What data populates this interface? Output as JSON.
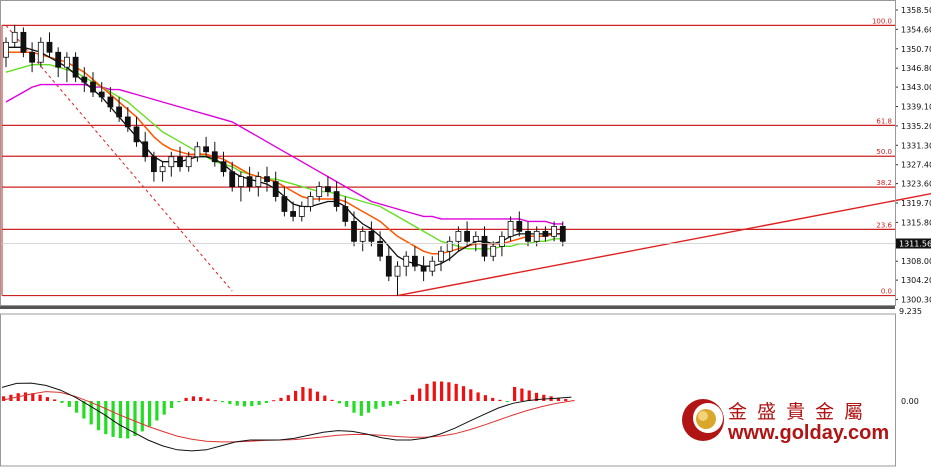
{
  "colors": {
    "background": "#ffffff",
    "candle": "#111111",
    "fib_line": "#cc2222",
    "trendline": "#e02020",
    "ma_fast": "#111111",
    "ma_mid": "#ff5500",
    "ma_green": "#66dd22",
    "ma_magenta": "#dd00dd",
    "macd_pos": "#ee1111",
    "macd_neg": "#22dd22",
    "macd_line": "#111111",
    "signal_line": "#dd3333",
    "logo_red": "#b01414"
  },
  "chart_data": [
    {
      "type": "candlestick",
      "title": "",
      "ylim": [
        1299.2,
        1359.7
      ],
      "y_ticks": [
        "1358.50",
        "1354.60",
        "1350.70",
        "1346.80",
        "1343.00",
        "1339.10",
        "1335.20",
        "1331.30",
        "1327.40",
        "1323.60",
        "1319.70",
        "1315.80",
        "1308.00",
        "1304.20",
        "1300.30"
      ],
      "current_price": "1311.56",
      "fib_levels": [
        {
          "label": "100.0",
          "value": 1355.4
        },
        {
          "label": "61.8",
          "value": 1335.3
        },
        {
          "label": "50.0",
          "value": 1329.1
        },
        {
          "label": "38.2",
          "value": 1322.9
        },
        {
          "label": "23.6",
          "value": 1314.4
        },
        {
          "label": "0.0",
          "value": 1301.1
        }
      ],
      "candles": [
        [
          1349,
          1353,
          1347,
          1352
        ],
        [
          1352,
          1355.5,
          1351,
          1354
        ],
        [
          1354,
          1355,
          1349,
          1350
        ],
        [
          1350,
          1352,
          1346,
          1348
        ],
        [
          1348,
          1353,
          1347,
          1352
        ],
        [
          1352,
          1354,
          1349,
          1350
        ],
        [
          1350,
          1351,
          1345,
          1347
        ],
        [
          1347,
          1350,
          1344,
          1349
        ],
        [
          1349,
          1350,
          1344,
          1345
        ],
        [
          1345,
          1347,
          1342,
          1344
        ],
        [
          1344,
          1346,
          1341,
          1342
        ],
        [
          1342,
          1344,
          1340,
          1341
        ],
        [
          1341,
          1343,
          1338,
          1339
        ],
        [
          1339,
          1341,
          1336,
          1337
        ],
        [
          1337,
          1339,
          1334,
          1335
        ],
        [
          1335,
          1337,
          1331,
          1332
        ],
        [
          1332,
          1334,
          1328,
          1329
        ],
        [
          1329,
          1330,
          1324,
          1326
        ],
        [
          1326,
          1328,
          1324,
          1327
        ],
        [
          1327,
          1330,
          1325,
          1329
        ],
        [
          1329,
          1331,
          1326,
          1327
        ],
        [
          1327,
          1330,
          1326,
          1329
        ],
        [
          1329,
          1332,
          1328,
          1331
        ],
        [
          1331,
          1333,
          1329,
          1330
        ],
        [
          1330,
          1332,
          1327,
          1328
        ],
        [
          1328,
          1330,
          1325,
          1326
        ],
        [
          1326,
          1328,
          1322,
          1323
        ],
        [
          1323,
          1326,
          1320,
          1325
        ],
        [
          1325,
          1327,
          1322,
          1323
        ],
        [
          1323,
          1326,
          1321,
          1325
        ],
        [
          1325,
          1327,
          1322,
          1324
        ],
        [
          1324,
          1326,
          1320,
          1321
        ],
        [
          1321,
          1323,
          1317,
          1318
        ],
        [
          1318,
          1320,
          1316,
          1317
        ],
        [
          1317,
          1320,
          1316,
          1319
        ],
        [
          1319,
          1322,
          1318,
          1321
        ],
        [
          1321,
          1324,
          1320,
          1323
        ],
        [
          1323,
          1325,
          1321,
          1322
        ],
        [
          1322,
          1324,
          1318,
          1319
        ],
        [
          1319,
          1321,
          1315,
          1316
        ],
        [
          1316,
          1318,
          1311,
          1312
        ],
        [
          1312,
          1315,
          1310,
          1314
        ],
        [
          1314,
          1316,
          1311,
          1312
        ],
        [
          1312,
          1314,
          1308,
          1309
        ],
        [
          1309,
          1311,
          1304,
          1305
        ],
        [
          1305,
          1308,
          1301,
          1307
        ],
        [
          1307,
          1310,
          1305,
          1309
        ],
        [
          1309,
          1311,
          1306,
          1307
        ],
        [
          1307,
          1309,
          1304,
          1306
        ],
        [
          1306,
          1309,
          1305,
          1308
        ],
        [
          1308,
          1311,
          1306,
          1310
        ],
        [
          1310,
          1313,
          1308,
          1312
        ],
        [
          1312,
          1315,
          1310,
          1314
        ],
        [
          1314,
          1316,
          1311,
          1312
        ],
        [
          1312,
          1314,
          1310,
          1313
        ],
        [
          1313,
          1315,
          1308,
          1309
        ],
        [
          1309,
          1312,
          1308,
          1311
        ],
        [
          1311,
          1314,
          1309,
          1313
        ],
        [
          1313,
          1317,
          1312,
          1316
        ],
        [
          1316,
          1318,
          1313,
          1314
        ],
        [
          1314,
          1316,
          1311,
          1312
        ],
        [
          1312,
          1315,
          1311,
          1314
        ],
        [
          1314,
          1315,
          1312,
          1313
        ],
        [
          1313,
          1316,
          1312,
          1315
        ],
        [
          1315,
          1316,
          1311,
          1312
        ]
      ],
      "ma_fast": [
        1351,
        1351,
        1351,
        1350.5,
        1350,
        1349,
        1348,
        1347,
        1345.5,
        1344,
        1342.5,
        1341,
        1339,
        1337,
        1335,
        1333,
        1331,
        1329,
        1328,
        1328,
        1328,
        1328.5,
        1329,
        1329,
        1328.5,
        1327.5,
        1326,
        1325,
        1324.5,
        1324,
        1323.5,
        1322.5,
        1321,
        1319.5,
        1319,
        1319,
        1319.5,
        1320,
        1320,
        1319,
        1317,
        1315.5,
        1314.5,
        1313,
        1311,
        1309,
        1308,
        1307.5,
        1307,
        1307,
        1307.5,
        1308.5,
        1310,
        1311,
        1312,
        1312,
        1311.5,
        1312,
        1313,
        1313.5,
        1313.5,
        1313.5,
        1313.5,
        1313.5,
        1313.5
      ],
      "ma_mid": [
        1350,
        1350,
        1350,
        1350,
        1349.5,
        1349,
        1348.5,
        1348,
        1347,
        1346,
        1344.5,
        1343,
        1341.5,
        1340,
        1338.5,
        1337,
        1335,
        1333,
        1331.5,
        1330.5,
        1330,
        1329.5,
        1329.5,
        1329.5,
        1329,
        1328.5,
        1327.5,
        1326.5,
        1325.5,
        1325,
        1324.5,
        1324,
        1323,
        1322,
        1321,
        1320.5,
        1320.5,
        1320.5,
        1320.5,
        1320,
        1319,
        1318,
        1317,
        1316,
        1314.5,
        1313,
        1312,
        1311,
        1310,
        1309.5,
        1309.5,
        1310,
        1310.5,
        1311,
        1311.5,
        1311.5,
        1311.5,
        1311.5,
        1312,
        1312.5,
        1313,
        1313,
        1313,
        1313.5,
        1313.5
      ],
      "ma_green": [
        1346,
        1346.5,
        1347,
        1347.5,
        1347.5,
        1347.5,
        1347,
        1346.5,
        1346,
        1345,
        1344,
        1343,
        1342,
        1341,
        1340,
        1338.5,
        1337,
        1335.5,
        1334,
        1333,
        1332,
        1331,
        1330,
        1329,
        1328,
        1327.5,
        1327,
        1326,
        1325.5,
        1325,
        1324.5,
        1324.5,
        1324,
        1323.5,
        1323,
        1322.5,
        1322,
        1322,
        1321.5,
        1321,
        1320.5,
        1320,
        1319.5,
        1319,
        1318,
        1317,
        1316,
        1315,
        1314,
        1313,
        1312,
        1311.5,
        1311,
        1310.5,
        1310.5,
        1310.5,
        1310.5,
        1311,
        1311,
        1311.5,
        1311.5,
        1312,
        1312,
        1312.5,
        1312.5
      ],
      "ma_magenta": [
        1340,
        1341,
        1342,
        1343,
        1343.5,
        1343.5,
        1343.5,
        1343.5,
        1343.5,
        1343.5,
        1343,
        1343,
        1342.5,
        1342.5,
        1342,
        1341.5,
        1341,
        1340.5,
        1340,
        1339.5,
        1339,
        1338.5,
        1338,
        1337.5,
        1337,
        1336.5,
        1336,
        1335,
        1334,
        1333,
        1332,
        1331,
        1330,
        1329,
        1328,
        1327,
        1326,
        1325,
        1324,
        1323,
        1322,
        1321,
        1320,
        1319.5,
        1319,
        1318.5,
        1318,
        1317.5,
        1317,
        1317,
        1316.5,
        1316.5,
        1316.5,
        1316.5,
        1316.5,
        1316.5,
        1316.5,
        1316.5,
        1316.5,
        1316.5,
        1316,
        1316,
        1316,
        1315.5,
        1315.5
      ],
      "trendline": [
        [
          45,
          1301.1
        ],
        [
          125,
          1327.8
        ]
      ],
      "projection_line": [
        [
          0,
          1355.4
        ],
        [
          26,
          1302
        ]
      ]
    },
    {
      "type": "bar",
      "title": "",
      "y_ticks": [
        "9.235",
        "0.00"
      ],
      "histogram": [
        1.2,
        1.6,
        2.0,
        2.2,
        2.0,
        1.6,
        1.0,
        0.4,
        -0.5,
        -1.5,
        -3,
        -4.5,
        -6,
        -7.5,
        -8.5,
        -9.2,
        -9.5,
        -9.6,
        -9.0,
        -7.8,
        -6.5,
        -5.0,
        -3.5,
        -1.8,
        -0.3,
        0.8,
        1.2,
        1.0,
        0.6,
        0.2,
        -0.3,
        -0.8,
        -1.2,
        -1.4,
        -1.3,
        -1.0,
        -0.5,
        0.2,
        0.8,
        1.5,
        2.6,
        3.6,
        3.2,
        2.4,
        1.4,
        0.3,
        -0.6,
        -1.5,
        -3.0,
        -3.8,
        -3.0,
        -2.0,
        -1.5,
        -1.2,
        -0.8,
        0.3,
        1.6,
        3.2,
        4.4,
        5.0,
        5.0,
        4.8,
        4.4,
        3.8,
        3.0,
        2.2,
        1.5,
        0.8,
        0.3,
        -0.2,
        3.6,
        3.2,
        2.7,
        2.1,
        1.6,
        1.2,
        0.8,
        0.5,
        0.2
      ],
      "macd_line": [
        3.5,
        4.5,
        4.6,
        4.0,
        2.8,
        1.0,
        -1.2,
        -3.5,
        -6,
        -8,
        -10,
        -11.5,
        -12.5,
        -12.8,
        -12.5,
        -11.5,
        -10.5,
        -10,
        -10,
        -10,
        -9.6,
        -8.8,
        -8,
        -7.6,
        -7.8,
        -8.5,
        -9.4,
        -10,
        -10,
        -9.5,
        -8.5,
        -7,
        -5.2,
        -3.5,
        -1.8,
        -0.6,
        0.1,
        0.5,
        0.7,
        1.0
      ],
      "signal_line": [
        0.2,
        1.0,
        1.8,
        2.4,
        2.2,
        1.2,
        -0.2,
        -1.8,
        -3.5,
        -5,
        -6.5,
        -7.8,
        -9,
        -9.8,
        -10.3,
        -10.5,
        -10.5,
        -10.3,
        -10.1,
        -10,
        -9.9,
        -9.6,
        -9.2,
        -8.8,
        -8.6,
        -8.6,
        -8.8,
        -9.1,
        -9.3,
        -9.3,
        -9.0,
        -8.4,
        -7.4,
        -6.2,
        -4.9,
        -3.6,
        -2.4,
        -1.4,
        -0.6,
        0.0
      ]
    }
  ],
  "logo": {
    "chinese": "金 盛 貴 金 屬",
    "url": "www.golday.com"
  }
}
